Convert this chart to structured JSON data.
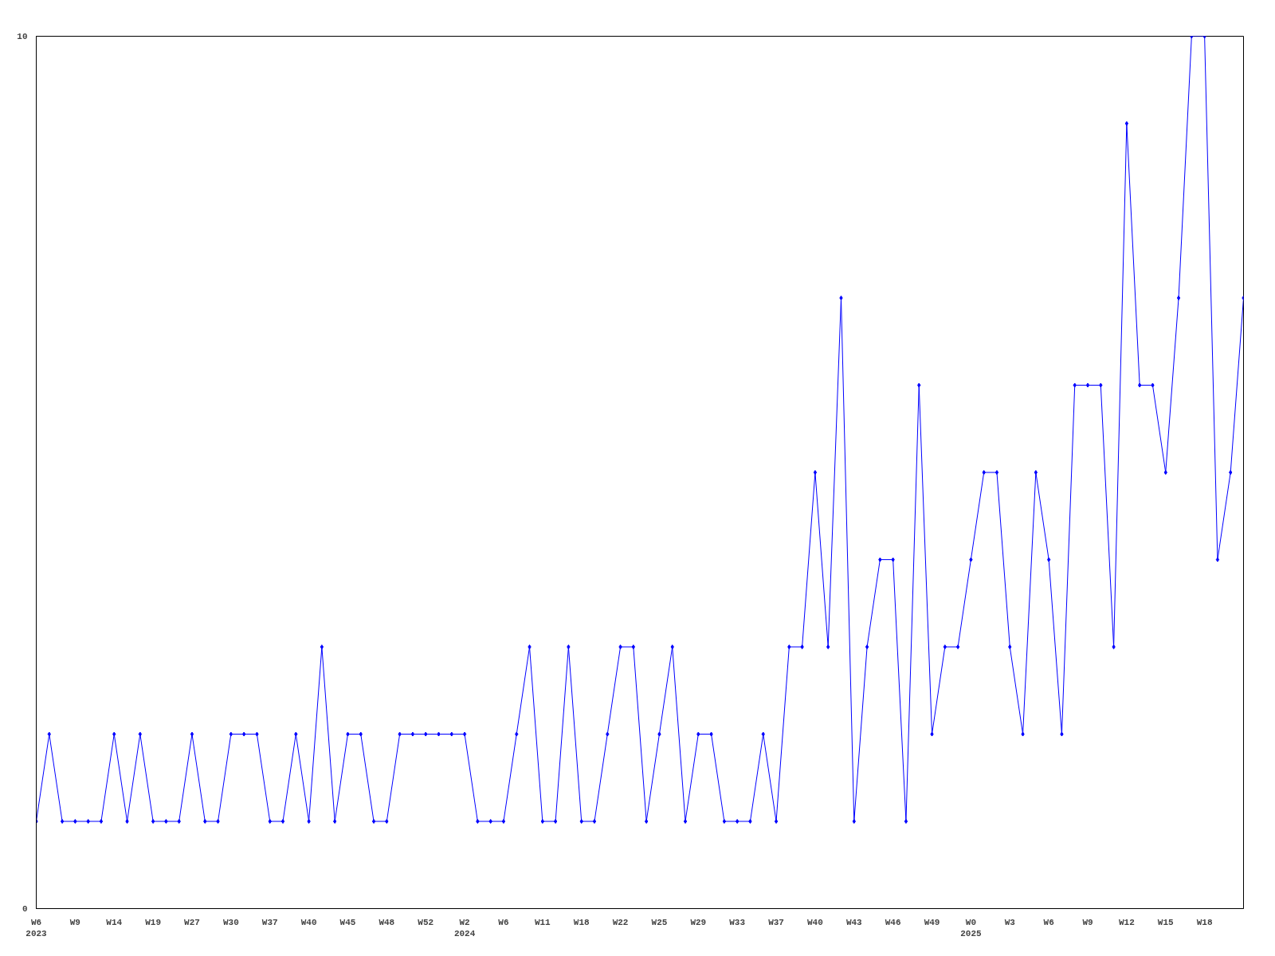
{
  "chart_data": {
    "type": "line",
    "categories": [
      "W6\n2023",
      null,
      null,
      "W9",
      null,
      null,
      "W14",
      null,
      null,
      "W19",
      null,
      null,
      "W27",
      null,
      null,
      "W30",
      null,
      null,
      "W37",
      null,
      null,
      "W40",
      null,
      null,
      "W45",
      null,
      null,
      "W48",
      null,
      null,
      "W52",
      null,
      null,
      "W2\n2024",
      null,
      null,
      "W6",
      null,
      null,
      "W11",
      null,
      null,
      "W18",
      null,
      null,
      "W22",
      null,
      null,
      "W25",
      null,
      null,
      "W29",
      null,
      null,
      "W33",
      null,
      null,
      "W37",
      null,
      null,
      "W40",
      null,
      null,
      "W43",
      null,
      null,
      "W46",
      null,
      null,
      "W49",
      null,
      null,
      "W0\n2025",
      null,
      null,
      "W3",
      null,
      null,
      "W6",
      null,
      null,
      "W9",
      null,
      null,
      "W12",
      null,
      null,
      "W15",
      null,
      null,
      "W18",
      null,
      null,
      null
    ],
    "series": [
      {
        "color": "#0000ff",
        "values": [
          1,
          2,
          1,
          1,
          1,
          1,
          2,
          1,
          2,
          1,
          1,
          1,
          2,
          1,
          1,
          2,
          2,
          2,
          1,
          1,
          2,
          1,
          3,
          1,
          2,
          2,
          1,
          1,
          2,
          2,
          2,
          2,
          2,
          2,
          1,
          1,
          1,
          2,
          3,
          1,
          1,
          3,
          1,
          1,
          2,
          3,
          3,
          1,
          2,
          3,
          1,
          2,
          2,
          1,
          1,
          1,
          2,
          1,
          3,
          3,
          5,
          3,
          7,
          1,
          3,
          4,
          4,
          1,
          6,
          2,
          3,
          3,
          4,
          5,
          5,
          3,
          2,
          5,
          4,
          2,
          6,
          6,
          6,
          3,
          9,
          6,
          6,
          5,
          7,
          10,
          10,
          4,
          5,
          7
        ]
      }
    ],
    "ylim": [
      0,
      10
    ],
    "yticks": [
      0,
      10
    ],
    "grid": false,
    "marker": "diamond",
    "line_style": "solid"
  }
}
